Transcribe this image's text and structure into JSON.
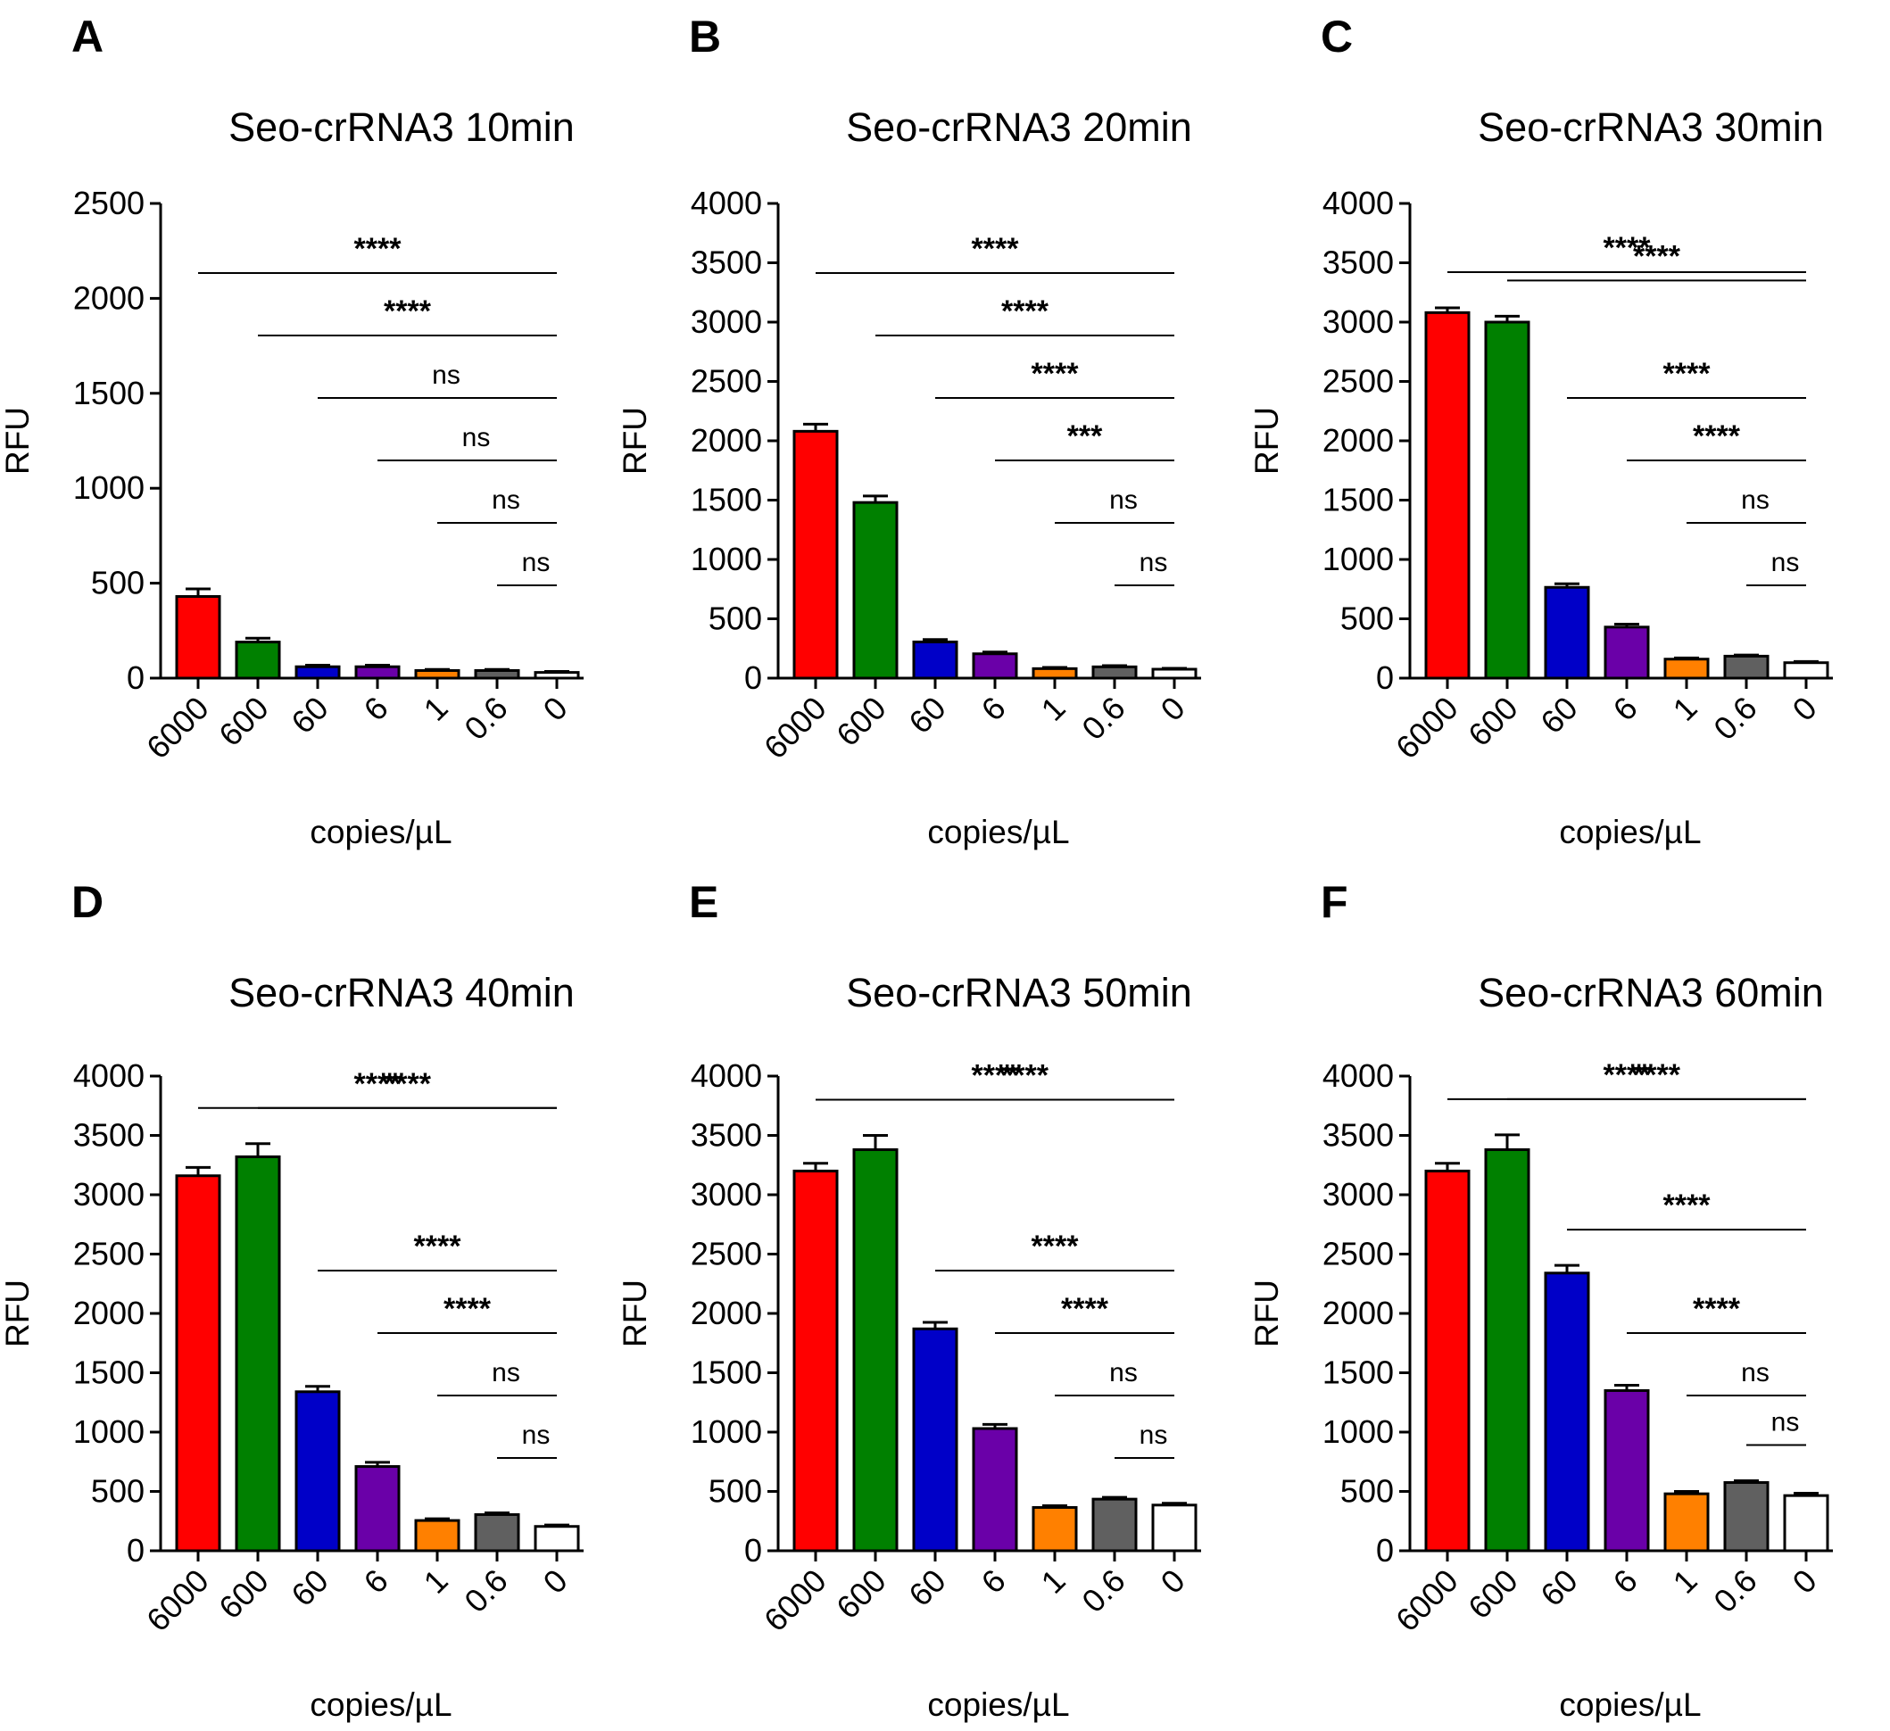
{
  "chart_data": [
    {
      "type": "bar",
      "panel": "A",
      "title": "Seo-crRNA3 10min",
      "xlabel": "copies/µL",
      "ylabel": "RFU",
      "ylim": [
        0,
        2500
      ],
      "yticks": [
        0,
        500,
        1000,
        1500,
        2000,
        2500
      ],
      "categories": [
        "6000",
        "600",
        "60",
        "6",
        "1",
        "0.6",
        "0"
      ],
      "values": [
        430,
        190,
        60,
        60,
        40,
        40,
        30
      ],
      "errors": [
        40,
        20,
        8,
        8,
        6,
        6,
        5
      ],
      "bar_colors": [
        "#ff0000",
        "#008000",
        "#0000c8",
        "#6a00a8",
        "#ff8000",
        "#606060",
        "#ffffff"
      ],
      "comparisons": [
        {
          "from": "6000",
          "to": "0",
          "label": "****"
        },
        {
          "from": "600",
          "to": "0",
          "label": "****"
        },
        {
          "from": "60",
          "to": "0",
          "label": "ns"
        },
        {
          "from": "6",
          "to": "0",
          "label": "ns"
        },
        {
          "from": "1",
          "to": "0",
          "label": "ns"
        },
        {
          "from": "0.6",
          "to": "0",
          "label": "ns"
        }
      ]
    },
    {
      "type": "bar",
      "panel": "B",
      "title": "Seo-crRNA3 20min",
      "xlabel": "copies/µL",
      "ylabel": "RFU",
      "ylim": [
        0,
        4000
      ],
      "yticks": [
        0,
        500,
        1000,
        1500,
        2000,
        2500,
        3000,
        3500,
        4000
      ],
      "categories": [
        "6000",
        "600",
        "60",
        "6",
        "1",
        "0.6",
        "0"
      ],
      "values": [
        2080,
        1480,
        305,
        205,
        80,
        95,
        75
      ],
      "errors": [
        60,
        55,
        20,
        15,
        10,
        10,
        8
      ],
      "bar_colors": [
        "#ff0000",
        "#008000",
        "#0000c8",
        "#6a00a8",
        "#ff8000",
        "#606060",
        "#ffffff"
      ],
      "comparisons": [
        {
          "from": "6000",
          "to": "0",
          "label": "****"
        },
        {
          "from": "600",
          "to": "0",
          "label": "****"
        },
        {
          "from": "60",
          "to": "0",
          "label": "****"
        },
        {
          "from": "6",
          "to": "0",
          "label": "***"
        },
        {
          "from": "1",
          "to": "0",
          "label": "ns"
        },
        {
          "from": "0.6",
          "to": "0",
          "label": "ns"
        }
      ]
    },
    {
      "type": "bar",
      "panel": "C",
      "title": "Seo-crRNA3 30min",
      "xlabel": "copies/µL",
      "ylabel": "RFU",
      "ylim": [
        0,
        4000
      ],
      "yticks": [
        0,
        500,
        1000,
        1500,
        2000,
        2500,
        3000,
        3500,
        4000
      ],
      "categories": [
        "6000",
        "600",
        "60",
        "6",
        "1",
        "0.6",
        "0"
      ],
      "values": [
        3080,
        3000,
        765,
        430,
        160,
        185,
        130
      ],
      "errors": [
        40,
        50,
        30,
        25,
        10,
        10,
        10
      ],
      "bar_colors": [
        "#ff0000",
        "#008000",
        "#0000c8",
        "#6a00a8",
        "#ff8000",
        "#606060",
        "#ffffff"
      ],
      "comparisons": [
        {
          "from": "6000",
          "to": "0",
          "label": "****"
        },
        {
          "from": "600",
          "to": "0",
          "label": "****"
        },
        {
          "from": "60",
          "to": "0",
          "label": "****"
        },
        {
          "from": "6",
          "to": "0",
          "label": "****"
        },
        {
          "from": "1",
          "to": "0",
          "label": "ns"
        },
        {
          "from": "0.6",
          "to": "0",
          "label": "ns"
        }
      ]
    },
    {
      "type": "bar",
      "panel": "D",
      "title": "Seo-crRNA3 40min",
      "xlabel": "copies/µL",
      "ylabel": "RFU",
      "ylim": [
        0,
        4000
      ],
      "yticks": [
        0,
        500,
        1000,
        1500,
        2000,
        2500,
        3000,
        3500,
        4000
      ],
      "categories": [
        "6000",
        "600",
        "60",
        "6",
        "1",
        "0.6",
        "0"
      ],
      "values": [
        3160,
        3320,
        1340,
        710,
        255,
        305,
        205
      ],
      "errors": [
        70,
        110,
        45,
        35,
        15,
        15,
        12
      ],
      "bar_colors": [
        "#ff0000",
        "#008000",
        "#0000c8",
        "#6a00a8",
        "#ff8000",
        "#606060",
        "#ffffff"
      ],
      "comparisons": [
        {
          "from": "6000",
          "to": "0",
          "label": "****"
        },
        {
          "from": "600",
          "to": "0",
          "label": "****"
        },
        {
          "from": "60",
          "to": "0",
          "label": "****"
        },
        {
          "from": "6",
          "to": "0",
          "label": "****"
        },
        {
          "from": "1",
          "to": "0",
          "label": "ns"
        },
        {
          "from": "0.6",
          "to": "0",
          "label": "ns"
        }
      ]
    },
    {
      "type": "bar",
      "panel": "E",
      "title": "Seo-crRNA3 50min",
      "xlabel": "copies/µL",
      "ylabel": "RFU",
      "ylim": [
        0,
        4000
      ],
      "yticks": [
        0,
        500,
        1000,
        1500,
        2000,
        2500,
        3000,
        3500,
        4000
      ],
      "categories": [
        "6000",
        "600",
        "60",
        "6",
        "1",
        "0.6",
        "0"
      ],
      "values": [
        3200,
        3380,
        1870,
        1030,
        365,
        435,
        385
      ],
      "errors": [
        65,
        120,
        55,
        35,
        15,
        15,
        15
      ],
      "bar_colors": [
        "#ff0000",
        "#008000",
        "#0000c8",
        "#6a00a8",
        "#ff8000",
        "#606060",
        "#ffffff"
      ],
      "comparisons": [
        {
          "from": "6000",
          "to": "0",
          "label": "****"
        },
        {
          "from": "600",
          "to": "0",
          "label": "****"
        },
        {
          "from": "60",
          "to": "0",
          "label": "****"
        },
        {
          "from": "6",
          "to": "0",
          "label": "****"
        },
        {
          "from": "1",
          "to": "0",
          "label": "ns"
        },
        {
          "from": "0.6",
          "to": "0",
          "label": "ns"
        }
      ]
    },
    {
      "type": "bar",
      "panel": "F",
      "title": "Seo-crRNA3 60min",
      "xlabel": "copies/µL",
      "ylabel": "RFU",
      "ylim": [
        0,
        4000
      ],
      "yticks": [
        0,
        500,
        1000,
        1500,
        2000,
        2500,
        3000,
        3500,
        4000
      ],
      "categories": [
        "6000",
        "600",
        "60",
        "6",
        "1",
        "0.6",
        "0"
      ],
      "values": [
        3200,
        3380,
        2340,
        1350,
        480,
        575,
        465
      ],
      "errors": [
        65,
        125,
        65,
        45,
        20,
        15,
        20
      ],
      "bar_colors": [
        "#ff0000",
        "#008000",
        "#0000c8",
        "#6a00a8",
        "#ff8000",
        "#606060",
        "#ffffff"
      ],
      "comparisons": [
        {
          "from": "6000",
          "to": "0",
          "label": "****"
        },
        {
          "from": "600",
          "to": "0",
          "label": "****"
        },
        {
          "from": "60",
          "to": "0",
          "label": "****"
        },
        {
          "from": "6",
          "to": "0",
          "label": "****"
        },
        {
          "from": "1",
          "to": "0",
          "label": "ns"
        },
        {
          "from": "0.6",
          "to": "0",
          "label": "ns"
        }
      ]
    }
  ]
}
